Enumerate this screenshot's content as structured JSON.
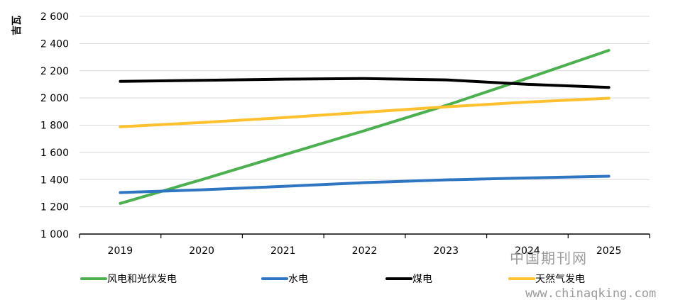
{
  "chart_data": {
    "type": "line",
    "ylabel": "吉瓦",
    "categories": [
      "2019",
      "2020",
      "2021",
      "2022",
      "2023",
      "2024",
      "2025"
    ],
    "ylim": [
      1000,
      2600
    ],
    "yticks": [
      1000,
      1200,
      1400,
      1600,
      1800,
      2000,
      2200,
      2400,
      2600
    ],
    "ytick_labels": [
      "1 000",
      "1 200",
      "1 400",
      "1 600",
      "1 800",
      "2 000",
      "2 200",
      "2 400",
      "2 600"
    ],
    "grid": true,
    "legend_position": "bottom",
    "series": [
      {
        "name": "风电和光伏发电",
        "color": "#4caf50",
        "values": [
          1225,
          1400,
          1580,
          1760,
          1945,
          2145,
          2350
        ]
      },
      {
        "name": "水电",
        "color": "#2e75c2",
        "values": [
          1305,
          1325,
          1350,
          1378,
          1398,
          1412,
          1425
        ]
      },
      {
        "name": "煤电",
        "color": "#000000",
        "values": [
          2122,
          2130,
          2138,
          2143,
          2133,
          2100,
          2078
        ]
      },
      {
        "name": "天然气发电",
        "color": "#ffc12e",
        "values": [
          1788,
          1820,
          1855,
          1895,
          1935,
          1970,
          1998
        ]
      }
    ]
  },
  "watermark": {
    "line1": "中国期刊网",
    "line2": "www.chinaqking.com"
  }
}
